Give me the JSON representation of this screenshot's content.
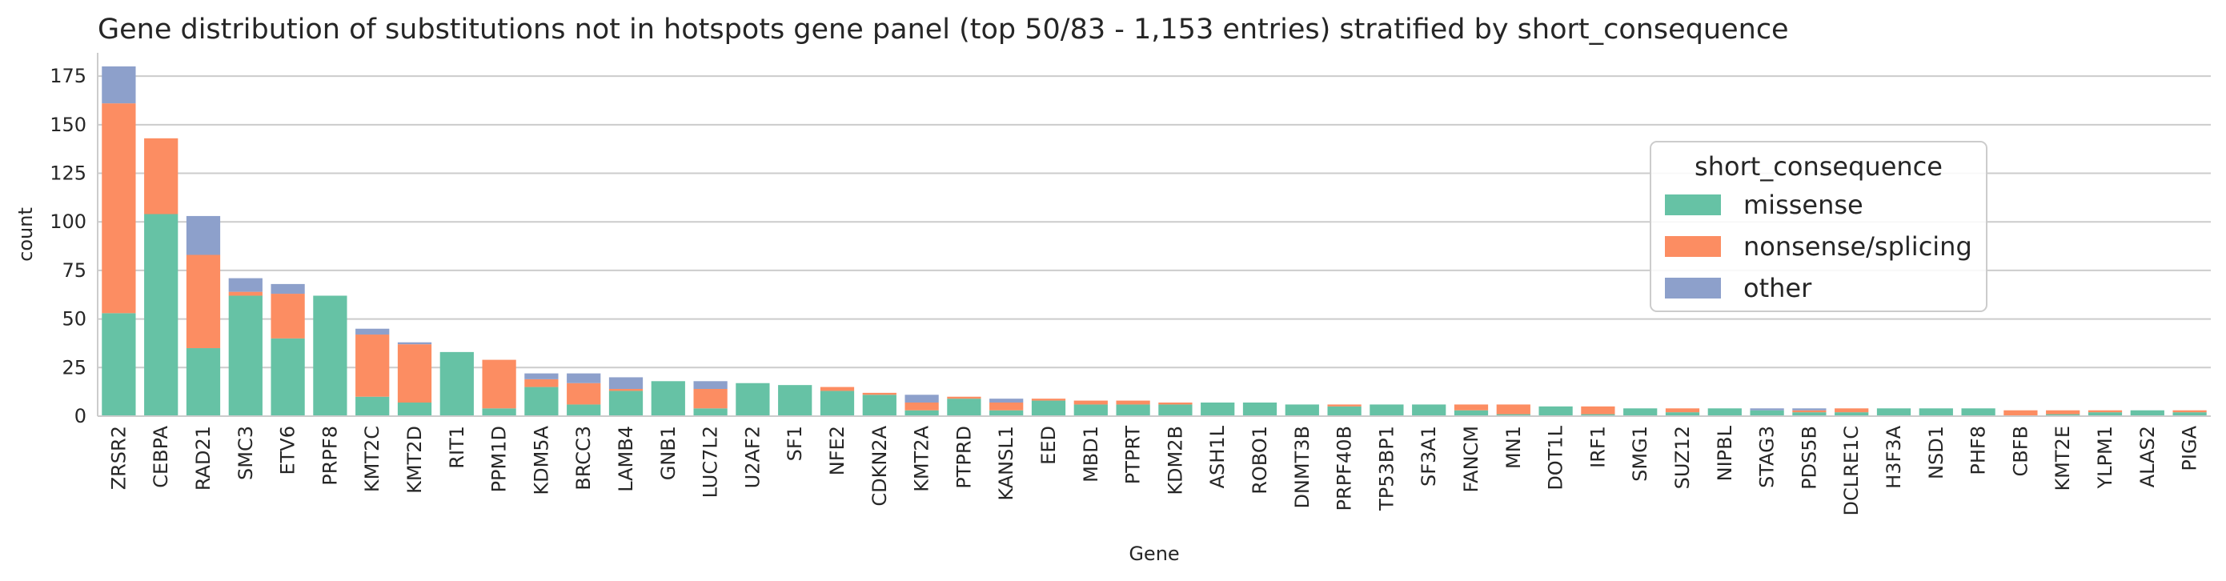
{
  "chart_data": {
    "type": "bar",
    "stacked": true,
    "title": "Gene distribution of substitutions not in hotspots gene panel (top 50/83 - 1,153 entries) stratified by short_consequence",
    "xlabel": "Gene",
    "ylabel": "count",
    "ylim": [
      0,
      187
    ],
    "yticks": [
      0,
      25,
      50,
      75,
      100,
      125,
      150,
      175
    ],
    "grid": "horizontal",
    "legend": {
      "title": "short_consequence",
      "placement": "right"
    },
    "categories": [
      "ZRSR2",
      "CEBPA",
      "RAD21",
      "SMC3",
      "ETV6",
      "PRPF8",
      "KMT2C",
      "KMT2D",
      "RIT1",
      "PPM1D",
      "KDM5A",
      "BRCC3",
      "LAMB4",
      "GNB1",
      "LUC7L2",
      "U2AF2",
      "SF1",
      "NFE2",
      "CDKN2A",
      "KMT2A",
      "PTPRD",
      "KANSL1",
      "EED",
      "MBD1",
      "PTPRT",
      "KDM2B",
      "ASH1L",
      "ROBO1",
      "DNMT3B",
      "PRPF40B",
      "TP53BP1",
      "SF3A1",
      "FANCM",
      "MN1",
      "DOT1L",
      "IRF1",
      "SMG1",
      "SUZ12",
      "NIPBL",
      "STAG3",
      "PDS5B",
      "DCLRE1C",
      "H3F3A",
      "NSD1",
      "PHF8",
      "CBFB",
      "KMT2E",
      "YLPM1",
      "ALAS2",
      "PIGA"
    ],
    "series": [
      {
        "name": "missense",
        "color": "#66c2a5",
        "values": [
          53,
          104,
          35,
          62,
          40,
          62,
          10,
          7,
          33,
          4,
          15,
          6,
          13,
          18,
          4,
          17,
          16,
          13,
          11,
          3,
          9,
          3,
          8,
          6,
          6,
          6,
          7,
          7,
          6,
          5,
          6,
          6,
          3,
          1,
          5,
          1,
          4,
          2,
          4,
          3,
          2,
          2,
          4,
          4,
          4,
          0,
          1,
          2,
          3,
          2
        ]
      },
      {
        "name": "nonsense/splicing",
        "color": "#fc8d62",
        "values": [
          108,
          39,
          48,
          2,
          23,
          0,
          32,
          30,
          0,
          25,
          4,
          11,
          1,
          0,
          10,
          0,
          0,
          2,
          1,
          4,
          1,
          4,
          1,
          2,
          2,
          1,
          0,
          0,
          0,
          1,
          0,
          0,
          3,
          5,
          0,
          4,
          0,
          2,
          0,
          0,
          1,
          2,
          0,
          0,
          0,
          3,
          2,
          1,
          0,
          1
        ]
      },
      {
        "name": "other",
        "color": "#8da0cb",
        "values": [
          19,
          0,
          20,
          7,
          5,
          0,
          3,
          1,
          0,
          0,
          3,
          5,
          6,
          0,
          4,
          0,
          0,
          0,
          0,
          4,
          0,
          2,
          0,
          0,
          0,
          0,
          0,
          0,
          0,
          0,
          0,
          0,
          0,
          0,
          0,
          0,
          0,
          0,
          0,
          1,
          1,
          0,
          0,
          0,
          0,
          0,
          0,
          0,
          0,
          0
        ]
      }
    ]
  }
}
